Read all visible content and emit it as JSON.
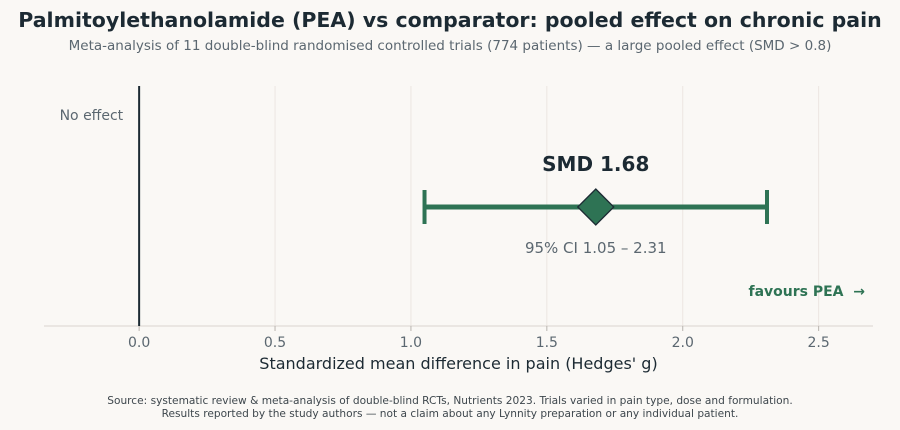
{
  "title": "Palmitoylethanolamide (PEA) vs comparator: pooled effect on chronic pain",
  "subtitle": "Meta-analysis of 11 double-blind randomised controlled trials (774 patients) — a large pooled effect (SMD > 0.8)",
  "chart_data": {
    "type": "forest",
    "estimate": 1.68,
    "ci_low": 1.05,
    "ci_high": 2.31,
    "estimate_label": "SMD 1.68",
    "ci_label": "95% CI 1.05 – 2.31",
    "reference_line": {
      "x": 0,
      "label": "No effect"
    },
    "direction_label": "favours PEA  →",
    "xlabel": "Standardized mean difference in pain (Hedges' g)",
    "xlim": [
      -0.35,
      2.7
    ],
    "xticks": [
      0,
      0.5,
      1,
      1.5,
      2,
      2.5
    ],
    "xtick_labels": [
      "0.0",
      "0.5",
      "1.0",
      "1.5",
      "2.0",
      "2.5"
    ],
    "grid": true,
    "colors": {
      "effect": "#2e7354",
      "reference": "#1c2a33",
      "grid": "#ece6e2"
    }
  },
  "source": {
    "line1": "Source: systematic review & meta-analysis of double-blind RCTs, Nutrients 2023. Trials varied in pain type, dose and formulation.",
    "line2": "Results reported by the study authors — not a claim about any Lynnity preparation or any individual patient."
  }
}
